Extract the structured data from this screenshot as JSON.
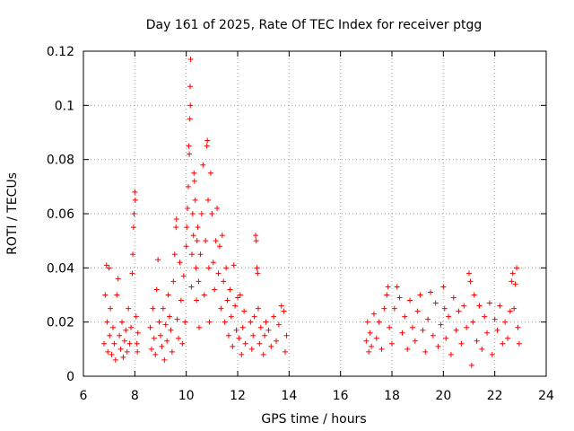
{
  "chart_data": {
    "type": "scatter",
    "title": "Day 161 of 2025, Rate Of TEC Index for receiver ptgg",
    "xlabel": "GPS time / hours",
    "ylabel": "ROTI / TECUs",
    "xlim": [
      6,
      24
    ],
    "ylim": [
      0,
      0.12
    ],
    "xticks": [
      "6",
      "8",
      "10",
      "12",
      "14",
      "16",
      "18",
      "20",
      "22",
      "24"
    ],
    "yticks": [
      "0",
      "0.02",
      "0.04",
      "0.06",
      "0.08",
      "0.1",
      "0.12"
    ],
    "grid": true,
    "marker": "+",
    "color": "#ff0000",
    "series": [
      {
        "points": [
          [
            6.8,
            0.012
          ],
          [
            6.85,
            0.03
          ],
          [
            6.9,
            0.041
          ],
          [
            6.92,
            0.02
          ],
          [
            6.95,
            0.009
          ],
          [
            7.0,
            0.04
          ],
          [
            7.02,
            0.015
          ],
          [
            7.05,
            0.025
          ],
          [
            7.1,
            0.008
          ],
          [
            7.15,
            0.018
          ],
          [
            7.2,
            0.012
          ],
          [
            7.25,
            0.006
          ],
          [
            7.3,
            0.03
          ],
          [
            7.35,
            0.036
          ],
          [
            7.4,
            0.015
          ],
          [
            7.45,
            0.01
          ],
          [
            7.5,
            0.02
          ],
          [
            7.55,
            0.007
          ],
          [
            7.6,
            0.013
          ],
          [
            7.65,
            0.017
          ],
          [
            7.7,
            0.009
          ],
          [
            7.75,
            0.025
          ],
          [
            7.8,
            0.012
          ],
          [
            7.85,
            0.018
          ],
          [
            7.9,
            0.038
          ],
          [
            7.92,
            0.045
          ],
          [
            7.95,
            0.055
          ],
          [
            7.97,
            0.06
          ],
          [
            8.0,
            0.068
          ],
          [
            8.02,
            0.065
          ],
          [
            8.05,
            0.022
          ],
          [
            8.08,
            0.012
          ],
          [
            8.1,
            0.009
          ],
          [
            8.12,
            0.016
          ],
          [
            8.6,
            0.018
          ],
          [
            8.65,
            0.01
          ],
          [
            8.7,
            0.025
          ],
          [
            8.75,
            0.014
          ],
          [
            8.8,
            0.008
          ],
          [
            8.85,
            0.032
          ],
          [
            8.9,
            0.043
          ],
          [
            8.95,
            0.02
          ],
          [
            9.0,
            0.015
          ],
          [
            9.05,
            0.011
          ],
          [
            9.1,
            0.025
          ],
          [
            9.15,
            0.006
          ],
          [
            9.2,
            0.019
          ],
          [
            9.25,
            0.013
          ],
          [
            9.3,
            0.03
          ],
          [
            9.35,
            0.022
          ],
          [
            9.4,
            0.017
          ],
          [
            9.45,
            0.009
          ],
          [
            9.5,
            0.035
          ],
          [
            9.55,
            0.045
          ],
          [
            9.6,
            0.055
          ],
          [
            9.62,
            0.058
          ],
          [
            9.65,
            0.021
          ],
          [
            9.7,
            0.014
          ],
          [
            9.75,
            0.042
          ],
          [
            9.8,
            0.028
          ],
          [
            9.85,
            0.012
          ],
          [
            9.9,
            0.037
          ],
          [
            9.95,
            0.02
          ],
          [
            10.0,
            0.048
          ],
          [
            10.02,
            0.055
          ],
          [
            10.05,
            0.062
          ],
          [
            10.08,
            0.07
          ],
          [
            10.1,
            0.085
          ],
          [
            10.12,
            0.082
          ],
          [
            10.14,
            0.095
          ],
          [
            10.15,
            0.107
          ],
          [
            10.16,
            0.1
          ],
          [
            10.17,
            0.117
          ],
          [
            10.2,
            0.033
          ],
          [
            10.22,
            0.045
          ],
          [
            10.25,
            0.06
          ],
          [
            10.28,
            0.052
          ],
          [
            10.3,
            0.075
          ],
          [
            10.32,
            0.072
          ],
          [
            10.35,
            0.065
          ],
          [
            10.38,
            0.04
          ],
          [
            10.4,
            0.028
          ],
          [
            10.42,
            0.05
          ],
          [
            10.45,
            0.055
          ],
          [
            10.48,
            0.035
          ],
          [
            10.5,
            0.018
          ],
          [
            10.55,
            0.045
          ],
          [
            10.6,
            0.06
          ],
          [
            10.65,
            0.078
          ],
          [
            10.7,
            0.03
          ],
          [
            10.75,
            0.05
          ],
          [
            10.8,
            0.085
          ],
          [
            10.82,
            0.087
          ],
          [
            10.85,
            0.065
          ],
          [
            10.88,
            0.04
          ],
          [
            10.9,
            0.02
          ],
          [
            10.95,
            0.075
          ],
          [
            11.0,
            0.06
          ],
          [
            11.05,
            0.042
          ],
          [
            11.1,
            0.032
          ],
          [
            11.15,
            0.05
          ],
          [
            11.2,
            0.062
          ],
          [
            11.25,
            0.038
          ],
          [
            11.3,
            0.048
          ],
          [
            11.35,
            0.025
          ],
          [
            11.4,
            0.052
          ],
          [
            11.45,
            0.035
          ],
          [
            11.5,
            0.02
          ],
          [
            11.55,
            0.04
          ],
          [
            11.6,
            0.028
          ],
          [
            11.65,
            0.015
          ],
          [
            11.7,
            0.032
          ],
          [
            11.75,
            0.022
          ],
          [
            11.8,
            0.011
          ],
          [
            11.85,
            0.041
          ],
          [
            11.9,
            0.026
          ],
          [
            11.95,
            0.017
          ],
          [
            12.0,
            0.029
          ],
          [
            12.05,
            0.014
          ],
          [
            12.1,
            0.03
          ],
          [
            12.15,
            0.008
          ],
          [
            12.2,
            0.018
          ],
          [
            12.25,
            0.024
          ],
          [
            12.3,
            0.012
          ],
          [
            12.5,
            0.02
          ],
          [
            12.55,
            0.01
          ],
          [
            12.6,
            0.015
          ],
          [
            12.65,
            0.022
          ],
          [
            12.7,
            0.052
          ],
          [
            12.72,
            0.05
          ],
          [
            12.75,
            0.04
          ],
          [
            12.78,
            0.038
          ],
          [
            12.8,
            0.025
          ],
          [
            12.85,
            0.012
          ],
          [
            12.9,
            0.018
          ],
          [
            13.0,
            0.008
          ],
          [
            13.05,
            0.015
          ],
          [
            13.1,
            0.02
          ],
          [
            13.2,
            0.017
          ],
          [
            13.3,
            0.011
          ],
          [
            13.4,
            0.022
          ],
          [
            13.5,
            0.013
          ],
          [
            13.6,
            0.019
          ],
          [
            13.7,
            0.026
          ],
          [
            13.8,
            0.024
          ],
          [
            13.85,
            0.009
          ],
          [
            13.9,
            0.015
          ],
          [
            17.0,
            0.013
          ],
          [
            17.05,
            0.02
          ],
          [
            17.1,
            0.009
          ],
          [
            17.15,
            0.016
          ],
          [
            17.2,
            0.011
          ],
          [
            17.3,
            0.023
          ],
          [
            17.4,
            0.014
          ],
          [
            17.5,
            0.02
          ],
          [
            17.6,
            0.01
          ],
          [
            17.7,
            0.025
          ],
          [
            17.8,
            0.03
          ],
          [
            17.85,
            0.033
          ],
          [
            17.9,
            0.018
          ],
          [
            18.0,
            0.012
          ],
          [
            18.1,
            0.025
          ],
          [
            18.2,
            0.033
          ],
          [
            18.3,
            0.029
          ],
          [
            18.4,
            0.016
          ],
          [
            18.5,
            0.022
          ],
          [
            18.6,
            0.01
          ],
          [
            18.7,
            0.028
          ],
          [
            18.8,
            0.018
          ],
          [
            18.9,
            0.013
          ],
          [
            19.0,
            0.024
          ],
          [
            19.1,
            0.03
          ],
          [
            19.2,
            0.017
          ],
          [
            19.3,
            0.009
          ],
          [
            19.4,
            0.021
          ],
          [
            19.5,
            0.031
          ],
          [
            19.6,
            0.015
          ],
          [
            19.7,
            0.027
          ],
          [
            19.8,
            0.011
          ],
          [
            19.9,
            0.019
          ],
          [
            20.0,
            0.033
          ],
          [
            20.05,
            0.025
          ],
          [
            20.1,
            0.014
          ],
          [
            20.2,
            0.022
          ],
          [
            20.3,
            0.008
          ],
          [
            20.4,
            0.029
          ],
          [
            20.5,
            0.017
          ],
          [
            20.6,
            0.024
          ],
          [
            20.7,
            0.012
          ],
          [
            20.8,
            0.026
          ],
          [
            20.9,
            0.018
          ],
          [
            21.0,
            0.038
          ],
          [
            21.05,
            0.035
          ],
          [
            21.1,
            0.004
          ],
          [
            21.15,
            0.02
          ],
          [
            21.2,
            0.03
          ],
          [
            21.3,
            0.013
          ],
          [
            21.4,
            0.026
          ],
          [
            21.5,
            0.01
          ],
          [
            21.6,
            0.022
          ],
          [
            21.7,
            0.016
          ],
          [
            21.8,
            0.027
          ],
          [
            21.9,
            0.008
          ],
          [
            22.0,
            0.021
          ],
          [
            22.1,
            0.017
          ],
          [
            22.2,
            0.026
          ],
          [
            22.3,
            0.012
          ],
          [
            22.4,
            0.02
          ],
          [
            22.5,
            0.014
          ],
          [
            22.6,
            0.024
          ],
          [
            22.65,
            0.035
          ],
          [
            22.7,
            0.038
          ],
          [
            22.75,
            0.025
          ],
          [
            22.8,
            0.034
          ],
          [
            22.85,
            0.04
          ],
          [
            22.9,
            0.018
          ],
          [
            22.95,
            0.012
          ]
        ]
      }
    ]
  }
}
